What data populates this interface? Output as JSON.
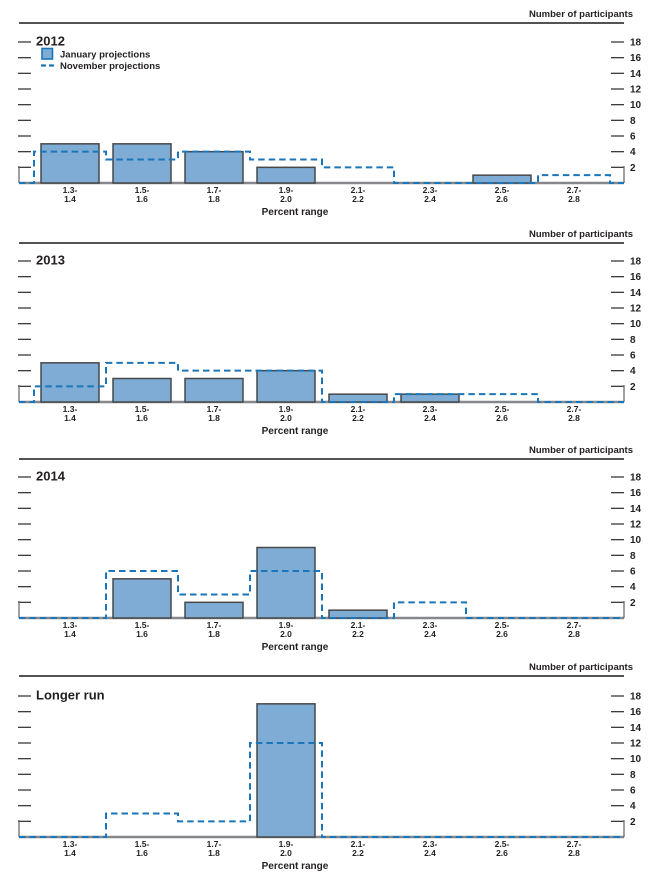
{
  "chart_data": {
    "type": "bar",
    "title": "",
    "ylabel": "Number of participants",
    "xlabel": "Percent range",
    "ylim": [
      0,
      18
    ],
    "yticks": [
      2,
      4,
      6,
      8,
      10,
      12,
      14,
      16,
      18
    ],
    "grid": false,
    "legend_position": "top-left-first-panel",
    "categories": [
      "1.3-1.4",
      "1.5-1.6",
      "1.7-1.8",
      "1.9-2.0",
      "2.1-2.2",
      "2.3-2.4",
      "2.5-2.6",
      "2.7-2.8"
    ],
    "category_label_lines": [
      [
        "1.3-",
        "1.4"
      ],
      [
        "1.5-",
        "1.6"
      ],
      [
        "1.7-",
        "1.8"
      ],
      [
        "1.9-",
        "2.0"
      ],
      [
        "2.1-",
        "2.2"
      ],
      [
        "2.3-",
        "2.4"
      ],
      [
        "2.5-",
        "2.6"
      ],
      [
        "2.7-",
        "2.8"
      ]
    ],
    "legend": [
      {
        "name": "January projections",
        "style": "bar-swatch"
      },
      {
        "name": "November projections",
        "style": "dashed-line-swatch"
      }
    ],
    "panels": [
      {
        "title": "2012",
        "series": [
          {
            "name": "January projections",
            "type": "bar",
            "values": [
              5,
              5,
              4,
              2,
              0,
              0,
              1,
              0
            ]
          },
          {
            "name": "November projections",
            "type": "step-line",
            "values": [
              4,
              3,
              4,
              3,
              2,
              0,
              0,
              1
            ]
          }
        ]
      },
      {
        "title": "2013",
        "series": [
          {
            "name": "January projections",
            "type": "bar",
            "values": [
              5,
              3,
              3,
              4,
              1,
              1,
              0,
              0
            ]
          },
          {
            "name": "November projections",
            "type": "step-line",
            "values": [
              2,
              5,
              4,
              4,
              0,
              1,
              1,
              0
            ]
          }
        ]
      },
      {
        "title": "2014",
        "series": [
          {
            "name": "January projections",
            "type": "bar",
            "values": [
              0,
              5,
              2,
              9,
              1,
              0,
              0,
              0
            ]
          },
          {
            "name": "November projections",
            "type": "step-line",
            "values": [
              0,
              6,
              3,
              6,
              0,
              2,
              0,
              0
            ]
          }
        ]
      },
      {
        "title": "Longer run",
        "series": [
          {
            "name": "January projections",
            "type": "bar",
            "values": [
              0,
              0,
              0,
              17,
              0,
              0,
              0,
              0
            ]
          },
          {
            "name": "November projections",
            "type": "step-line",
            "values": [
              0,
              3,
              2,
              12,
              0,
              0,
              0,
              0
            ]
          }
        ]
      }
    ],
    "colors": {
      "bar_fill": "#7EACD4",
      "bar_stroke": "#47484A",
      "november_line": "#1B76B9",
      "rule": "#1A1A1A",
      "baseline": "#85878A",
      "tick": "#3A3A3C",
      "text": "#231F20"
    }
  }
}
